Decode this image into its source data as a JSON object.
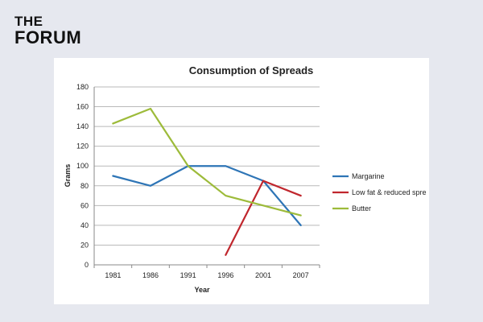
{
  "brand": {
    "line1": "THE",
    "line2": "FORUM"
  },
  "chart_data": {
    "type": "line",
    "title": "Consumption of Spreads",
    "xlabel": "Year",
    "ylabel": "Grams",
    "categories": [
      "1981",
      "1986",
      "1991",
      "1996",
      "2001",
      "2007"
    ],
    "ylim": [
      0,
      180
    ],
    "yticks": [
      0,
      20,
      40,
      60,
      80,
      100,
      120,
      140,
      160,
      180
    ],
    "grid": true,
    "legend_position": "right",
    "series": [
      {
        "name": "Margarine",
        "color": "#2e75b6",
        "values": [
          90,
          80,
          100,
          100,
          85,
          40
        ]
      },
      {
        "name": "Low fat & reduced spre",
        "color": "#c0262d",
        "values": [
          null,
          null,
          null,
          10,
          85,
          70
        ]
      },
      {
        "name": "Butter",
        "color": "#9dbb3a",
        "values": [
          143,
          158,
          100,
          70,
          60,
          50
        ]
      }
    ]
  }
}
